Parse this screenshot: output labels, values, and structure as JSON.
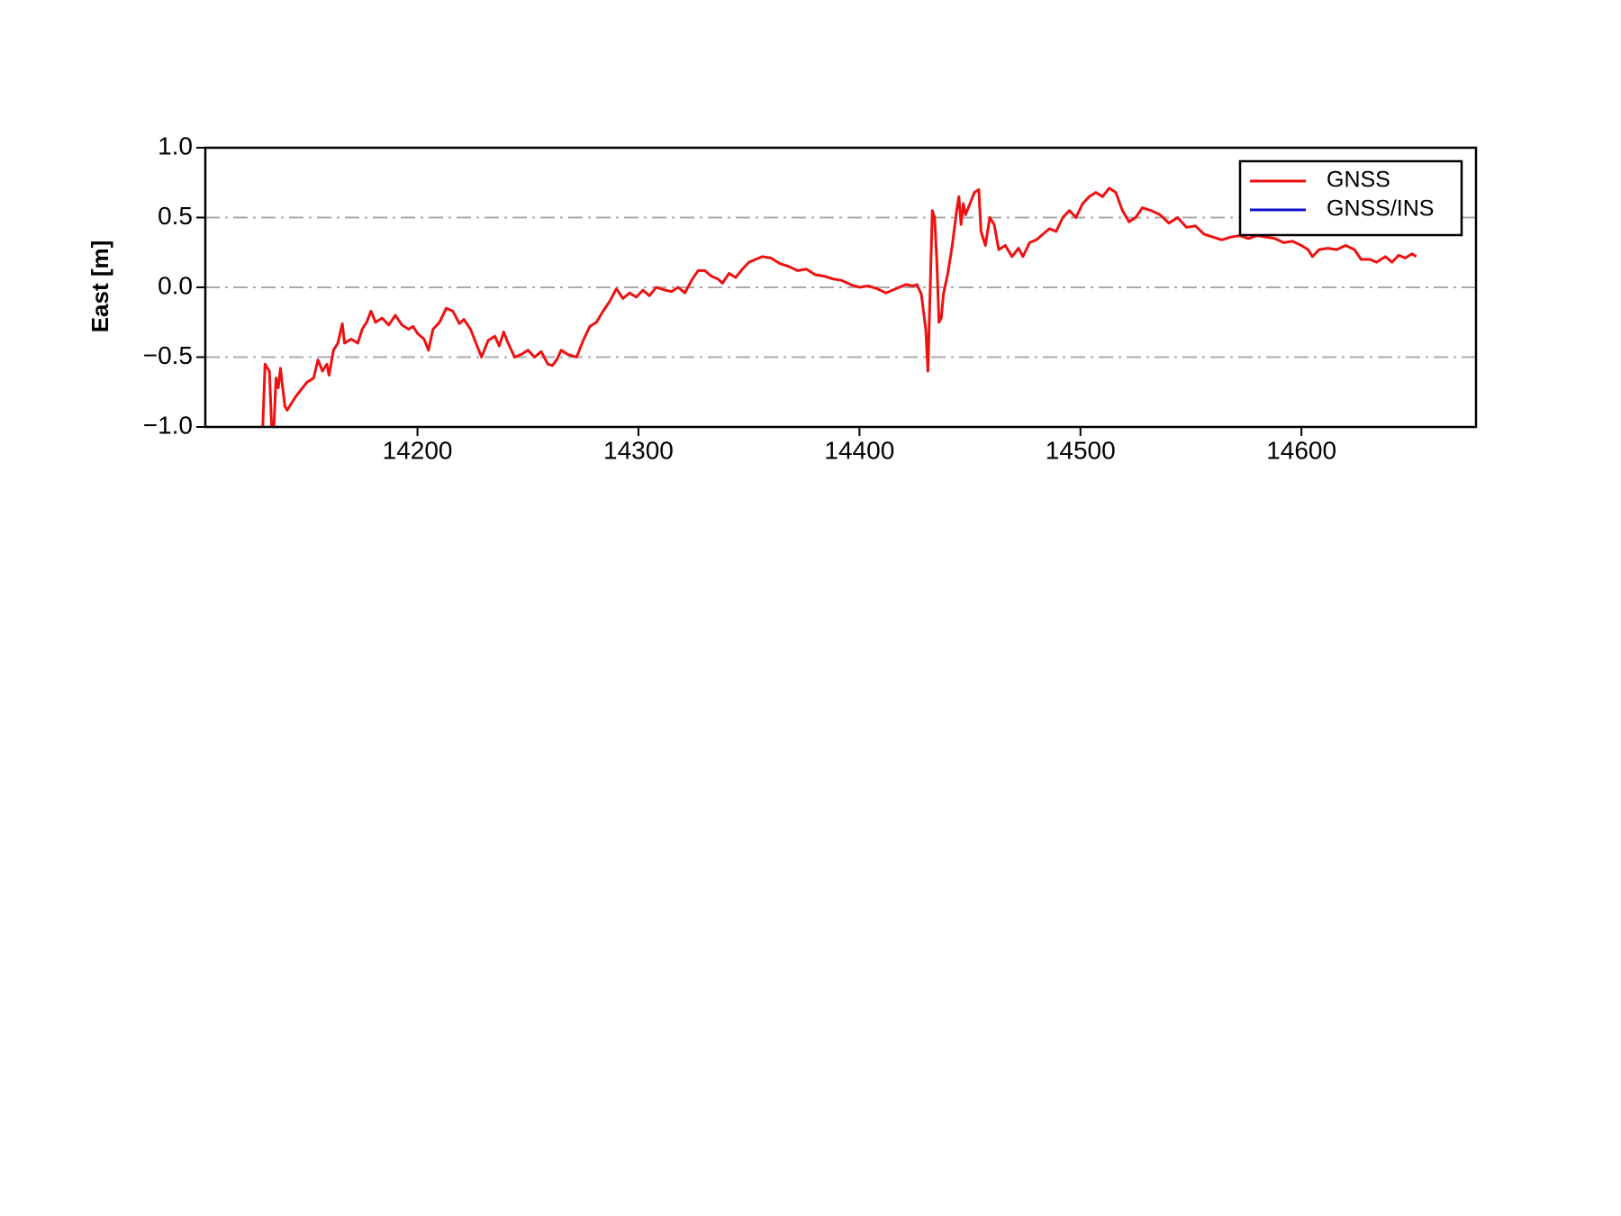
{
  "chart_data": {
    "type": "line",
    "ylabel": "East [m]",
    "xlim": [
      14104,
      14679
    ],
    "xticks": [
      14200,
      14300,
      14400,
      14500,
      14600
    ],
    "ylim": [
      -1.0,
      1.0
    ],
    "yticks": [
      {
        "value": -1.0,
        "label": "−1.0"
      },
      {
        "value": -0.5,
        "label": "−0.5"
      },
      {
        "value": 0.0,
        "label": "0.0"
      },
      {
        "value": 0.5,
        "label": "0.5"
      },
      {
        "value": 1.0,
        "label": "1.0"
      }
    ],
    "grid": true,
    "legend": "upper right",
    "series": [
      {
        "name": "GNSS",
        "color": "#ee1111",
        "x": [
          14130,
          14131,
          14133,
          14134,
          14135,
          14136,
          14137,
          14138,
          14140,
          14141,
          14145,
          14148,
          14150,
          14153,
          14155,
          14157,
          14159,
          14160,
          14162,
          14164,
          14166,
          14167,
          14170,
          14173,
          14175,
          14177,
          14179,
          14181,
          14184,
          14187,
          14190,
          14193,
          14196,
          14198,
          14200,
          14203,
          14205,
          14207,
          14210,
          14213,
          14216,
          14219,
          14221,
          14224,
          14227,
          14229,
          14232,
          14235,
          14237,
          14239,
          14241,
          14244,
          14247,
          14250,
          14253,
          14256,
          14259,
          14261,
          14263,
          14265,
          14268,
          14272,
          14275,
          14278,
          14281,
          14284,
          14287,
          14290,
          14293,
          14296,
          14299,
          14302,
          14305,
          14308,
          14312,
          14315,
          14318,
          14321,
          14324,
          14327,
          14330,
          14333,
          14336,
          14338,
          14341,
          14344,
          14347,
          14350,
          14353,
          14356,
          14360,
          14364,
          14368,
          14372,
          14376,
          14380,
          14384,
          14388,
          14392,
          14396,
          14400,
          14404,
          14408,
          14412,
          14415,
          14418,
          14421,
          14424,
          14426,
          14428,
          14430,
          14431,
          14433,
          14434,
          14435,
          14436,
          14437,
          14438,
          14440,
          14442,
          14444,
          14445,
          14446,
          14447,
          14448,
          14450,
          14452,
          14454,
          14455,
          14457,
          14459,
          14461,
          14463,
          14466,
          14469,
          14472,
          14474,
          14477,
          14480,
          14483,
          14486,
          14489,
          14492,
          14495,
          14498,
          14501,
          14504,
          14507,
          14510,
          14513,
          14516,
          14519,
          14522,
          14525,
          14528,
          14532,
          14536,
          14540,
          14544,
          14548,
          14552,
          14556,
          14560,
          14564,
          14568,
          14572,
          14576,
          14580,
          14584,
          14588,
          14592,
          14596,
          14600,
          14603,
          14605,
          14608,
          14612,
          14616,
          14620,
          14624,
          14627,
          14631,
          14634,
          14638,
          14641,
          14644,
          14647,
          14650,
          14652
        ],
        "values": [
          -1.0,
          -0.55,
          -0.6,
          -1.0,
          -1.0,
          -0.65,
          -0.72,
          -0.58,
          -0.85,
          -0.88,
          -0.78,
          -0.72,
          -0.68,
          -0.65,
          -0.52,
          -0.6,
          -0.55,
          -0.63,
          -0.45,
          -0.4,
          -0.26,
          -0.4,
          -0.37,
          -0.4,
          -0.3,
          -0.25,
          -0.17,
          -0.25,
          -0.22,
          -0.27,
          -0.2,
          -0.27,
          -0.3,
          -0.28,
          -0.33,
          -0.37,
          -0.45,
          -0.3,
          -0.25,
          -0.15,
          -0.17,
          -0.26,
          -0.23,
          -0.3,
          -0.42,
          -0.5,
          -0.38,
          -0.35,
          -0.42,
          -0.32,
          -0.4,
          -0.5,
          -0.48,
          -0.45,
          -0.5,
          -0.46,
          -0.55,
          -0.56,
          -0.52,
          -0.45,
          -0.48,
          -0.5,
          -0.38,
          -0.28,
          -0.25,
          -0.17,
          -0.1,
          -0.01,
          -0.08,
          -0.04,
          -0.07,
          -0.02,
          -0.06,
          0.0,
          -0.02,
          -0.03,
          0.0,
          -0.04,
          0.05,
          0.12,
          0.12,
          0.08,
          0.06,
          0.03,
          0.1,
          0.07,
          0.13,
          0.18,
          0.2,
          0.22,
          0.21,
          0.17,
          0.15,
          0.12,
          0.13,
          0.09,
          0.08,
          0.06,
          0.05,
          0.02,
          0.0,
          0.01,
          -0.01,
          -0.04,
          -0.02,
          0.0,
          0.02,
          0.01,
          0.02,
          -0.05,
          -0.3,
          -0.6,
          0.55,
          0.5,
          0.2,
          -0.25,
          -0.22,
          -0.05,
          0.1,
          0.3,
          0.55,
          0.65,
          0.45,
          0.6,
          0.52,
          0.6,
          0.68,
          0.7,
          0.4,
          0.3,
          0.5,
          0.45,
          0.27,
          0.3,
          0.22,
          0.28,
          0.22,
          0.32,
          0.34,
          0.38,
          0.42,
          0.4,
          0.5,
          0.55,
          0.5,
          0.6,
          0.65,
          0.68,
          0.65,
          0.71,
          0.68,
          0.55,
          0.47,
          0.5,
          0.57,
          0.55,
          0.52,
          0.46,
          0.5,
          0.43,
          0.44,
          0.38,
          0.36,
          0.34,
          0.36,
          0.37,
          0.35,
          0.37,
          0.36,
          0.35,
          0.32,
          0.33,
          0.3,
          0.27,
          0.22,
          0.27,
          0.28,
          0.27,
          0.3,
          0.27,
          0.2,
          0.2,
          0.18,
          0.22,
          0.18,
          0.23,
          0.21,
          0.24,
          0.22
        ]
      },
      {
        "name": "GNSS/INS",
        "color": "#1111cc",
        "x": [],
        "values": []
      }
    ]
  }
}
